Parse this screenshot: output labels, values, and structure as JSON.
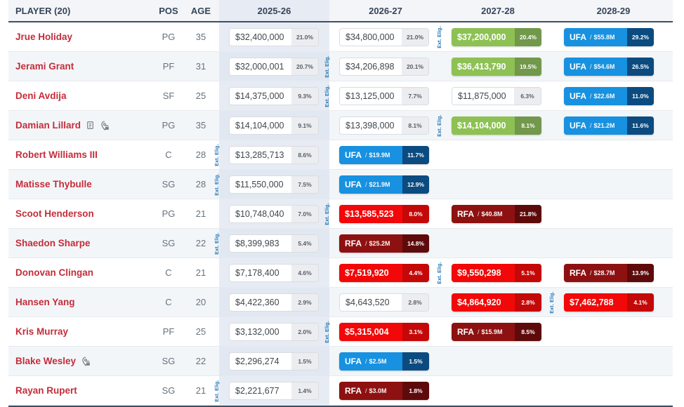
{
  "table": {
    "columns": [
      "PLAYER (20)",
      "POS",
      "AGE",
      "2025-26",
      "2026-27",
      "2027-28",
      "2028-29"
    ],
    "ext_eligible_label": "Ext. Elig.",
    "fa_separator": "/",
    "rows": [
      {
        "player": "Jrue Holiday",
        "pos": "PG",
        "age": "35",
        "icons": [],
        "years": [
          {
            "type": "plain",
            "value": "$32,400,000",
            "pct": "21.0%"
          },
          {
            "type": "plain",
            "value": "$34,800,000",
            "pct": "21.0%"
          },
          {
            "type": "green",
            "value": "$37,200,000",
            "pct": "20.4%",
            "ext": true
          },
          {
            "type": "ufa",
            "label": "UFA",
            "amount": "$55.8M",
            "pct": "29.2%"
          }
        ]
      },
      {
        "player": "Jerami Grant",
        "pos": "PF",
        "age": "31",
        "icons": [],
        "years": [
          {
            "type": "plain",
            "value": "$32,000,001",
            "pct": "20.7%"
          },
          {
            "type": "plain",
            "value": "$34,206,898",
            "pct": "20.1%",
            "ext": true
          },
          {
            "type": "green",
            "value": "$36,413,790",
            "pct": "19.5%"
          },
          {
            "type": "ufa",
            "label": "UFA",
            "amount": "$54.6M",
            "pct": "26.5%"
          }
        ]
      },
      {
        "player": "Deni Avdija",
        "pos": "SF",
        "age": "25",
        "icons": [],
        "years": [
          {
            "type": "plain",
            "value": "$14,375,000",
            "pct": "9.3%"
          },
          {
            "type": "plain",
            "value": "$13,125,000",
            "pct": "7.7%",
            "ext": true
          },
          {
            "type": "plain",
            "value": "$11,875,000",
            "pct": "6.3%"
          },
          {
            "type": "ufa",
            "label": "UFA",
            "amount": "$22.6M",
            "pct": "11.0%"
          }
        ]
      },
      {
        "player": "Damian Lillard",
        "pos": "PG",
        "age": "35",
        "icons": [
          "contract-note",
          "trade-restriction"
        ],
        "years": [
          {
            "type": "plain",
            "value": "$14,104,000",
            "pct": "9.1%"
          },
          {
            "type": "plain",
            "value": "$13,398,000",
            "pct": "8.1%"
          },
          {
            "type": "green",
            "value": "$14,104,000",
            "pct": "8.1%",
            "ext": true
          },
          {
            "type": "ufa",
            "label": "UFA",
            "amount": "$21.2M",
            "pct": "11.6%"
          }
        ]
      },
      {
        "player": "Robert Williams III",
        "pos": "C",
        "age": "28",
        "icons": [],
        "years": [
          {
            "type": "plain",
            "value": "$13,285,713",
            "pct": "8.6%",
            "ext": true
          },
          {
            "type": "ufa",
            "label": "UFA",
            "amount": "$19.9M",
            "pct": "11.7%"
          },
          null,
          null
        ]
      },
      {
        "player": "Matisse Thybulle",
        "pos": "SG",
        "age": "28",
        "icons": [],
        "years": [
          {
            "type": "plain",
            "value": "$11,550,000",
            "pct": "7.5%",
            "ext": true
          },
          {
            "type": "ufa",
            "label": "UFA",
            "amount": "$21.9M",
            "pct": "12.9%"
          },
          null,
          null
        ]
      },
      {
        "player": "Scoot Henderson",
        "pos": "PG",
        "age": "21",
        "icons": [],
        "years": [
          {
            "type": "plain",
            "value": "$10,748,040",
            "pct": "7.0%"
          },
          {
            "type": "red",
            "value": "$13,585,523",
            "pct": "8.0%",
            "ext": true
          },
          {
            "type": "rfa",
            "label": "RFA",
            "amount": "$40.8M",
            "pct": "21.8%"
          },
          null
        ]
      },
      {
        "player": "Shaedon Sharpe",
        "pos": "SG",
        "age": "22",
        "icons": [],
        "years": [
          {
            "type": "plain",
            "value": "$8,399,983",
            "pct": "5.4%",
            "ext": true
          },
          {
            "type": "rfa",
            "label": "RFA",
            "amount": "$25.2M",
            "pct": "14.8%"
          },
          null,
          null
        ]
      },
      {
        "player": "Donovan Clingan",
        "pos": "C",
        "age": "21",
        "icons": [],
        "years": [
          {
            "type": "plain",
            "value": "$7,178,400",
            "pct": "4.6%"
          },
          {
            "type": "red",
            "value": "$7,519,920",
            "pct": "4.4%"
          },
          {
            "type": "red",
            "value": "$9,550,298",
            "pct": "5.1%",
            "ext": true
          },
          {
            "type": "rfa",
            "label": "RFA",
            "amount": "$28.7M",
            "pct": "13.9%"
          }
        ]
      },
      {
        "player": "Hansen Yang",
        "pos": "C",
        "age": "20",
        "icons": [],
        "years": [
          {
            "type": "plain",
            "value": "$4,422,360",
            "pct": "2.9%"
          },
          {
            "type": "plain",
            "value": "$4,643,520",
            "pct": "2.8%"
          },
          {
            "type": "red",
            "value": "$4,864,920",
            "pct": "2.8%"
          },
          {
            "type": "red",
            "value": "$7,462,788",
            "pct": "4.1%",
            "ext": true
          }
        ]
      },
      {
        "player": "Kris Murray",
        "pos": "PF",
        "age": "25",
        "icons": [],
        "years": [
          {
            "type": "plain",
            "value": "$3,132,000",
            "pct": "2.0%"
          },
          {
            "type": "red",
            "value": "$5,315,004",
            "pct": "3.1%",
            "ext": true
          },
          {
            "type": "rfa",
            "label": "RFA",
            "amount": "$15.9M",
            "pct": "8.5%"
          },
          null
        ]
      },
      {
        "player": "Blake Wesley",
        "pos": "SG",
        "age": "22",
        "icons": [
          "trade-restriction"
        ],
        "years": [
          {
            "type": "plain",
            "value": "$2,296,274",
            "pct": "1.5%"
          },
          {
            "type": "ufa",
            "label": "UFA",
            "amount": "$2.5M",
            "pct": "1.5%"
          },
          null,
          null
        ]
      },
      {
        "player": "Rayan Rupert",
        "pos": "SG",
        "age": "21",
        "icons": [],
        "years": [
          {
            "type": "plain",
            "value": "$2,221,677",
            "pct": "1.4%",
            "ext": true
          },
          {
            "type": "rfa",
            "label": "RFA",
            "amount": "$3.0M",
            "pct": "1.8%"
          },
          null,
          null
        ]
      }
    ]
  },
  "colors": {
    "player_link": "#C42D3A",
    "green_cell": "#8DC153",
    "green_pct": "#72984B",
    "ufa_blue": "#1791E0",
    "ufa_pct": "#0B4B80",
    "red_cell": "#F20808",
    "red_pct": "#C40808",
    "rfa_maroon": "#8E1111",
    "rfa_pct": "#5E0A0A",
    "ext_eligible_blue": "#1E74B4",
    "year_column_tint": "#E7EBF4",
    "row_stripe": "#F3F6F9",
    "header_border": "#3D4E63"
  }
}
